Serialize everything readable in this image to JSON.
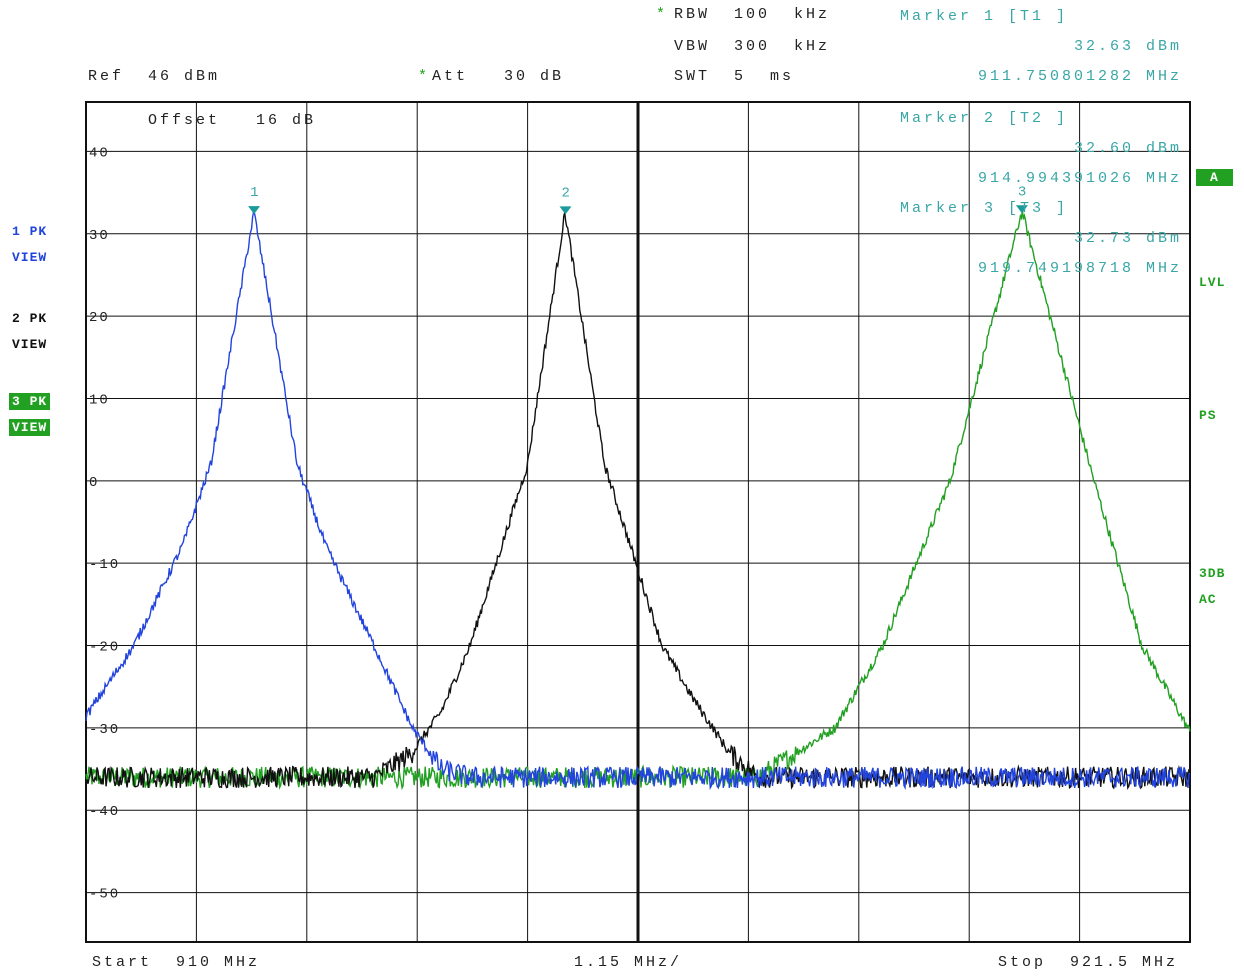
{
  "header": {
    "rbw_star": "*",
    "rbw": "RBW  100  kHz",
    "vbw": "VBW  300  kHz",
    "swt": "SWT  5  ms",
    "ref": "Ref  46 dBm",
    "att_star": "*",
    "att": "Att   30 dB",
    "offset": "Offset   16 dB"
  },
  "markers": [
    {
      "title": "Marker 1 [T1 ]",
      "level": "32.63 dBm",
      "freq": "911.750801282 MHz",
      "label": "1",
      "x_mhz": 911.7508,
      "y_dbm": 32.63
    },
    {
      "title": "Marker 2 [T2 ]",
      "level": "32.60 dBm",
      "freq": "914.994391026 MHz",
      "label": "2",
      "x_mhz": 914.9944,
      "y_dbm": 32.6
    },
    {
      "title": "Marker 3 [T3 ]",
      "level": "32.73 dBm",
      "freq": "919.749198718 MHz",
      "label": "3",
      "x_mhz": 919.7492,
      "y_dbm": 32.73
    }
  ],
  "left_labels": {
    "t1_a": "1 PK",
    "t1_b": "VIEW",
    "t2_a": "2 PK",
    "t2_b": "VIEW",
    "t3_a": "3 PK",
    "t3_b": "VIEW"
  },
  "right_labels": {
    "a": "A",
    "lvl": "LVL",
    "ps": "PS",
    "db3": "3DB",
    "ac": "AC"
  },
  "footer": {
    "start": "Start  910 MHz",
    "span": "1.15 MHz/",
    "stop": "Stop  921.5 MHz"
  },
  "chart_data": {
    "type": "line",
    "xlim": [
      910,
      921.5
    ],
    "ylim": [
      -56,
      46
    ],
    "y_ticks": [
      40,
      30,
      20,
      10,
      0,
      -10,
      -20,
      -30,
      -40,
      -50
    ],
    "y_tick_labels": [
      "40",
      "30",
      "20",
      "10",
      "0",
      "-10",
      "-20",
      "-30",
      "-40",
      "-50"
    ],
    "noise_floor_dbm": -36,
    "series": [
      {
        "trace": "1 PK VIEW",
        "color": "#2244dd",
        "peak_x": 911.7508,
        "peak_y": 32.63,
        "x": [
          910.0,
          910.5,
          911.0,
          911.3,
          911.75,
          912.2,
          912.5,
          913.0,
          913.4,
          913.7,
          914.0,
          916.0,
          918.0,
          921.5
        ],
        "y": [
          -28.6,
          -20,
          -8,
          2,
          32.63,
          2,
          -8,
          -20,
          -30,
          -35,
          -36,
          -36,
          -36,
          -36
        ]
      },
      {
        "trace": "2 PK VIEW",
        "color": "#111111",
        "peak_x": 914.9944,
        "peak_y": 32.6,
        "x": [
          910.0,
          913.0,
          913.4,
          913.7,
          914.0,
          914.6,
          914.99,
          915.4,
          916.0,
          916.3,
          916.7,
          917.0,
          921.5
        ],
        "y": [
          -36,
          -36,
          -33,
          -28,
          -20,
          2,
          32.6,
          2,
          -20,
          -26,
          -33,
          -36,
          -36
        ]
      },
      {
        "trace": "3 PK VIEW",
        "color": "#22a022",
        "peak_x": 919.7492,
        "peak_y": 32.73,
        "x": [
          910.0,
          917.0,
          917.8,
          918.3,
          919.0,
          919.75,
          920.5,
          921.0,
          921.5
        ],
        "y": [
          -36,
          -36,
          -30,
          -20,
          0,
          32.73,
          0,
          -20,
          -30.5
        ]
      }
    ]
  }
}
